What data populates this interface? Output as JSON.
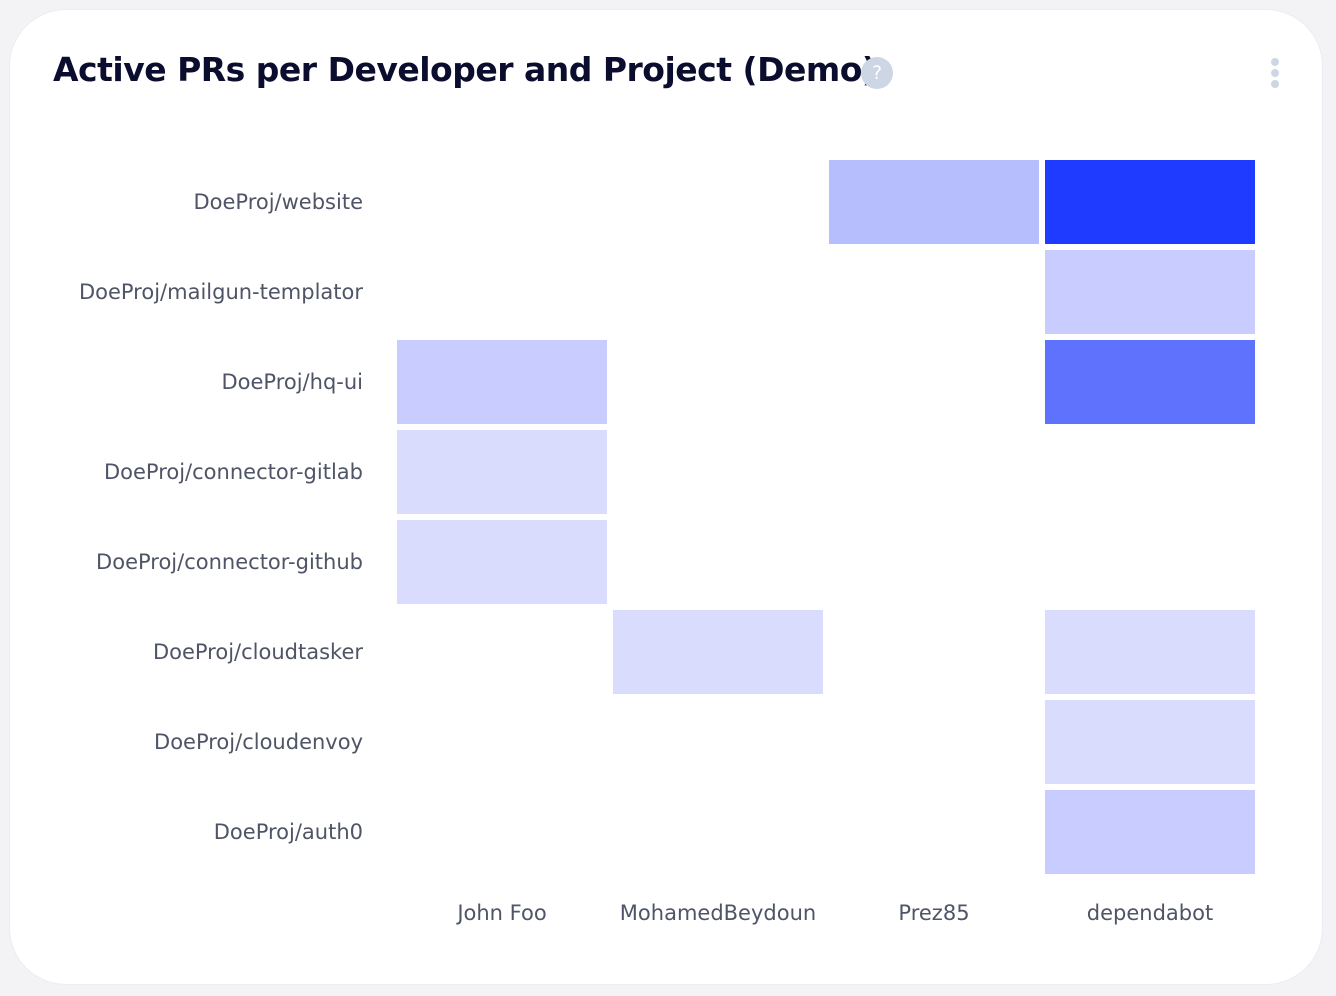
{
  "header": {
    "title": "Active PRs per Developer and Project (Demo)",
    "help_icon": "question-circle-icon",
    "help_glyph": "?",
    "menu_icon": "vertical-ellipsis-icon"
  },
  "colors": {
    "low": "#dadcfe",
    "mid": "#c8ccfe",
    "mid2": "#b6befd",
    "high": "#5e72fe",
    "max": "#1f3bff"
  },
  "chart_data": {
    "type": "heatmap",
    "title": "Active PRs per Developer and Project (Demo)",
    "x_categories": [
      "John Foo",
      "MohamedBeydoun",
      "Prez85",
      "dependabot"
    ],
    "y_categories": [
      "DoeProj/website",
      "DoeProj/mailgun-templator",
      "DoeProj/hq-ui",
      "DoeProj/connector-gitlab",
      "DoeProj/connector-github",
      "DoeProj/cloudtasker",
      "DoeProj/cloudenvoy",
      "DoeProj/auth0"
    ],
    "cells": [
      {
        "x": "Prez85",
        "y": "DoeProj/website",
        "value": 3
      },
      {
        "x": "dependabot",
        "y": "DoeProj/website",
        "value": 8
      },
      {
        "x": "dependabot",
        "y": "DoeProj/mailgun-templator",
        "value": 2
      },
      {
        "x": "John Foo",
        "y": "DoeProj/hq-ui",
        "value": 2
      },
      {
        "x": "dependabot",
        "y": "DoeProj/hq-ui",
        "value": 6
      },
      {
        "x": "John Foo",
        "y": "DoeProj/connector-gitlab",
        "value": 1
      },
      {
        "x": "John Foo",
        "y": "DoeProj/connector-github",
        "value": 1
      },
      {
        "x": "MohamedBeydoun",
        "y": "DoeProj/cloudtasker",
        "value": 1
      },
      {
        "x": "dependabot",
        "y": "DoeProj/cloudtasker",
        "value": 1
      },
      {
        "x": "dependabot",
        "y": "DoeProj/cloudenvoy",
        "value": 1
      },
      {
        "x": "dependabot",
        "y": "DoeProj/auth0",
        "value": 2
      }
    ],
    "xlabel": "",
    "ylabel": "",
    "legend": "none",
    "grid": false
  }
}
